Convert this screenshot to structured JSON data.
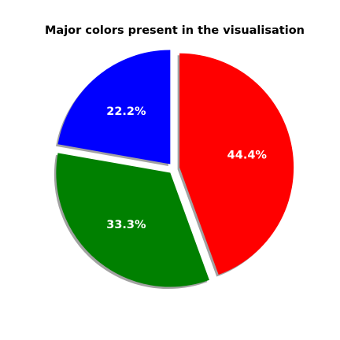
{
  "chart_data": {
    "type": "pie",
    "title": "Major colors present in the visualisation",
    "slices": [
      {
        "value": 22.2,
        "label": "22.2%",
        "color": "#0000ff"
      },
      {
        "value": 33.3,
        "label": "33.3%",
        "color": "#008000"
      },
      {
        "value": 44.4,
        "label": "44.4%",
        "color": "#ff0000"
      }
    ],
    "shadow": true,
    "exploded": true
  }
}
